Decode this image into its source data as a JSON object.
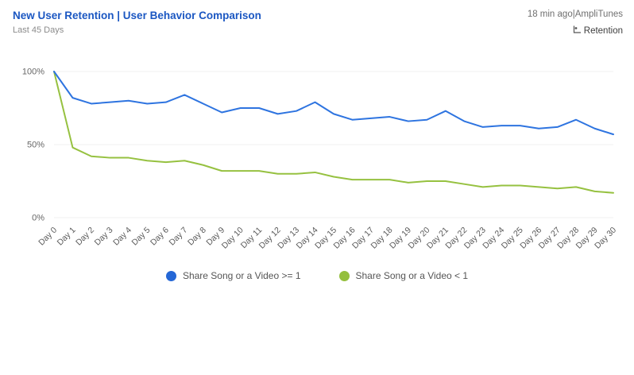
{
  "header": {
    "title": "New User Retention | User Behavior Comparison",
    "subtitle": "Last 45 Days",
    "meta": "18 min ago|AmpliTunes",
    "chart_type_label": "Retention"
  },
  "legend": [
    {
      "label": "Share Song or a Video >= 1",
      "color": "#2467d6"
    },
    {
      "label": "Share Song or a Video < 1",
      "color": "#94bf3d"
    }
  ],
  "chart_data": {
    "type": "line",
    "x": [
      "Day 0",
      "Day 1",
      "Day 2",
      "Day 3",
      "Day 4",
      "Day 5",
      "Day 6",
      "Day 7",
      "Day 8",
      "Day 9",
      "Day 10",
      "Day 11",
      "Day 12",
      "Day 13",
      "Day 14",
      "Day 15",
      "Day 16",
      "Day 17",
      "Day 18",
      "Day 19",
      "Day 20",
      "Day 21",
      "Day 22",
      "Day 23",
      "Day 24",
      "Day 25",
      "Day 26",
      "Day 27",
      "Day 28",
      "Day 29",
      "Day 30"
    ],
    "series": [
      {
        "name": "Share Song or a Video >= 1",
        "color": "#2e74e0",
        "values": [
          100,
          82,
          78,
          79,
          80,
          78,
          79,
          84,
          78,
          72,
          75,
          75,
          71,
          73,
          79,
          71,
          67,
          68,
          69,
          66,
          67,
          73,
          66,
          62,
          63,
          63,
          61,
          62,
          67,
          61,
          57
        ]
      },
      {
        "name": "Share Song or a Video < 1",
        "color": "#96c140",
        "values": [
          100,
          48,
          42,
          41,
          41,
          39,
          38,
          39,
          36,
          32,
          32,
          32,
          30,
          30,
          31,
          28,
          26,
          26,
          26,
          24,
          25,
          25,
          23,
          21,
          22,
          22,
          21,
          20,
          21,
          18,
          17
        ]
      }
    ],
    "title": "New User Retention | User Behavior Comparison",
    "xlabel": "",
    "ylabel": "",
    "ylim": [
      0,
      100
    ],
    "yticks": [
      0,
      50,
      100
    ],
    "ytick_labels": [
      "0%",
      "50%",
      "100%"
    ],
    "grid": false,
    "legend_position": "bottom"
  }
}
